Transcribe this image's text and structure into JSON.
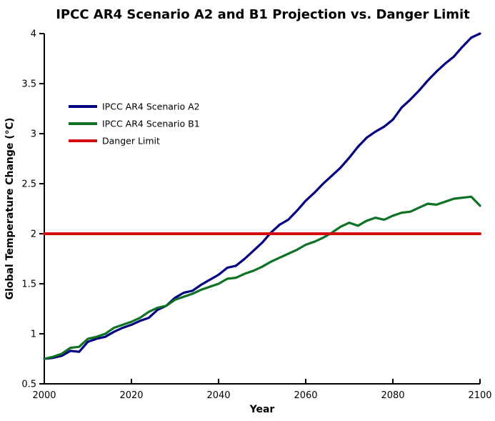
{
  "chart_data": {
    "type": "line",
    "title": "IPCC AR4 Scenario A2 and B1 Projection vs. Danger Limit",
    "xlabel": "Year",
    "ylabel": "Global Temperature Change (°C)",
    "xlim": [
      2000,
      2100
    ],
    "ylim": [
      0.5,
      4
    ],
    "xticks": [
      2000,
      2020,
      2040,
      2060,
      2080,
      2100
    ],
    "yticks": [
      0.5,
      1,
      1.5,
      2,
      2.5,
      3,
      3.5,
      4
    ],
    "grid": false,
    "legend_position": "upper-left-inside",
    "axis_color": "#000000",
    "background_color": "#ffffff",
    "series": [
      {
        "name": "IPCC AR4 Scenario A2",
        "color": "#000080",
        "stroke_width": 3.2,
        "points": [
          [
            2000,
            0.75
          ],
          [
            2002,
            0.76
          ],
          [
            2004,
            0.78
          ],
          [
            2006,
            0.83
          ],
          [
            2008,
            0.82
          ],
          [
            2010,
            0.92
          ],
          [
            2012,
            0.95
          ],
          [
            2014,
            0.97
          ],
          [
            2016,
            1.02
          ],
          [
            2018,
            1.06
          ],
          [
            2020,
            1.09
          ],
          [
            2022,
            1.13
          ],
          [
            2024,
            1.16
          ],
          [
            2026,
            1.24
          ],
          [
            2028,
            1.28
          ],
          [
            2030,
            1.36
          ],
          [
            2032,
            1.41
          ],
          [
            2034,
            1.43
          ],
          [
            2036,
            1.49
          ],
          [
            2038,
            1.54
          ],
          [
            2040,
            1.59
          ],
          [
            2042,
            1.66
          ],
          [
            2044,
            1.68
          ],
          [
            2046,
            1.75
          ],
          [
            2048,
            1.83
          ],
          [
            2050,
            1.91
          ],
          [
            2052,
            2.01
          ],
          [
            2054,
            2.09
          ],
          [
            2056,
            2.14
          ],
          [
            2058,
            2.23
          ],
          [
            2060,
            2.33
          ],
          [
            2062,
            2.41
          ],
          [
            2064,
            2.5
          ],
          [
            2066,
            2.58
          ],
          [
            2068,
            2.66
          ],
          [
            2070,
            2.76
          ],
          [
            2072,
            2.87
          ],
          [
            2074,
            2.96
          ],
          [
            2076,
            3.02
          ],
          [
            2078,
            3.07
          ],
          [
            2080,
            3.14
          ],
          [
            2082,
            3.26
          ],
          [
            2084,
            3.34
          ],
          [
            2086,
            3.43
          ],
          [
            2088,
            3.53
          ],
          [
            2090,
            3.62
          ],
          [
            2092,
            3.7
          ],
          [
            2094,
            3.77
          ],
          [
            2096,
            3.87
          ],
          [
            2098,
            3.96
          ],
          [
            2100,
            4.0
          ]
        ]
      },
      {
        "name": "IPCC AR4 Scenario B1",
        "color": "#0d7223",
        "stroke_width": 3.2,
        "points": [
          [
            2000,
            0.75
          ],
          [
            2002,
            0.77
          ],
          [
            2004,
            0.8
          ],
          [
            2006,
            0.86
          ],
          [
            2008,
            0.87
          ],
          [
            2010,
            0.95
          ],
          [
            2012,
            0.97
          ],
          [
            2014,
            1.0
          ],
          [
            2016,
            1.06
          ],
          [
            2018,
            1.09
          ],
          [
            2020,
            1.12
          ],
          [
            2022,
            1.16
          ],
          [
            2024,
            1.22
          ],
          [
            2026,
            1.26
          ],
          [
            2028,
            1.28
          ],
          [
            2030,
            1.34
          ],
          [
            2032,
            1.37
          ],
          [
            2034,
            1.4
          ],
          [
            2036,
            1.44
          ],
          [
            2038,
            1.47
          ],
          [
            2040,
            1.5
          ],
          [
            2042,
            1.55
          ],
          [
            2044,
            1.56
          ],
          [
            2046,
            1.6
          ],
          [
            2048,
            1.63
          ],
          [
            2050,
            1.67
          ],
          [
            2052,
            1.72
          ],
          [
            2054,
            1.76
          ],
          [
            2056,
            1.8
          ],
          [
            2058,
            1.84
          ],
          [
            2060,
            1.89
          ],
          [
            2062,
            1.92
          ],
          [
            2064,
            1.96
          ],
          [
            2066,
            2.01
          ],
          [
            2068,
            2.07
          ],
          [
            2070,
            2.11
          ],
          [
            2072,
            2.08
          ],
          [
            2074,
            2.13
          ],
          [
            2076,
            2.16
          ],
          [
            2078,
            2.14
          ],
          [
            2080,
            2.18
          ],
          [
            2082,
            2.21
          ],
          [
            2084,
            2.22
          ],
          [
            2086,
            2.26
          ],
          [
            2088,
            2.3
          ],
          [
            2090,
            2.29
          ],
          [
            2092,
            2.32
          ],
          [
            2094,
            2.35
          ],
          [
            2096,
            2.36
          ],
          [
            2098,
            2.37
          ],
          [
            2100,
            2.28
          ]
        ]
      },
      {
        "name": "Danger Limit",
        "color": "#d40d0d",
        "stroke_width": 4,
        "points": [
          [
            2000,
            2.0
          ],
          [
            2100,
            2.0
          ]
        ]
      }
    ]
  }
}
